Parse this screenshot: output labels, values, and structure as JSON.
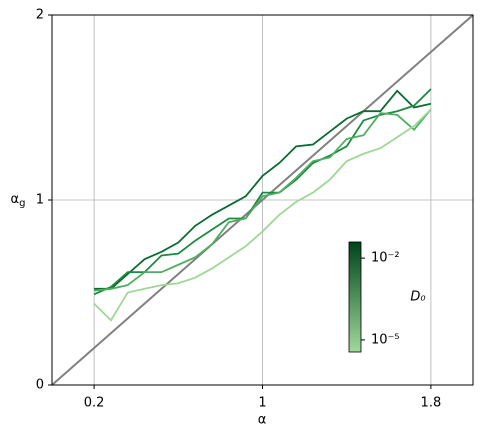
{
  "chart_data": {
    "type": "line",
    "xlabel": "α",
    "ylabel": "αg",
    "x": [
      0.2,
      0.28,
      0.36,
      0.44,
      0.52,
      0.6,
      0.68,
      0.76,
      0.84,
      0.92,
      1.0,
      1.08,
      1.16,
      1.24,
      1.32,
      1.4,
      1.48,
      1.56,
      1.64,
      1.72,
      1.8
    ],
    "series": [
      {
        "color": "#0b6b30",
        "values": [
          0.52,
          0.52,
          0.6,
          0.68,
          0.72,
          0.77,
          0.86,
          0.92,
          0.97,
          1.02,
          1.13,
          1.2,
          1.29,
          1.3,
          1.37,
          1.44,
          1.48,
          1.48,
          1.59,
          1.5,
          1.52
        ]
      },
      {
        "color": "#1c8a42",
        "values": [
          0.49,
          0.53,
          0.61,
          0.61,
          0.7,
          0.71,
          0.78,
          0.84,
          0.9,
          0.9,
          1.04,
          1.04,
          1.11,
          1.2,
          1.24,
          1.29,
          1.43,
          1.46,
          1.48,
          1.51,
          1.6
        ]
      },
      {
        "color": "#4daf5f",
        "values": [
          0.51,
          0.52,
          0.54,
          0.61,
          0.61,
          0.65,
          0.69,
          0.76,
          0.88,
          0.9,
          1.02,
          1.04,
          1.12,
          1.21,
          1.23,
          1.33,
          1.35,
          1.47,
          1.46,
          1.38,
          1.49
        ]
      },
      {
        "color": "#9fd896",
        "values": [
          0.44,
          0.35,
          0.5,
          0.52,
          0.54,
          0.55,
          0.58,
          0.63,
          0.69,
          0.75,
          0.83,
          0.92,
          0.99,
          1.04,
          1.11,
          1.21,
          1.25,
          1.28,
          1.34,
          1.4,
          1.49
        ]
      }
    ],
    "xlim": [
      0,
      2
    ],
    "ylim": [
      0,
      2
    ],
    "xticks": [
      0.2,
      1,
      1.8
    ],
    "yticks": [
      0,
      1,
      2
    ],
    "grid": true,
    "reference_line": {
      "x": [
        0,
        2
      ],
      "y": [
        0,
        2
      ],
      "color": "#808080"
    },
    "colorbar": {
      "label": "D₀",
      "log": true,
      "lim": [
        3.6e-06,
        0.039
      ],
      "colors": [
        "#a1d99b",
        "#00441b"
      ],
      "ticks": [
        {
          "value": 0.01,
          "label": "10⁻²"
        },
        {
          "value": 1e-05,
          "label": "10⁻⁵"
        }
      ]
    }
  }
}
